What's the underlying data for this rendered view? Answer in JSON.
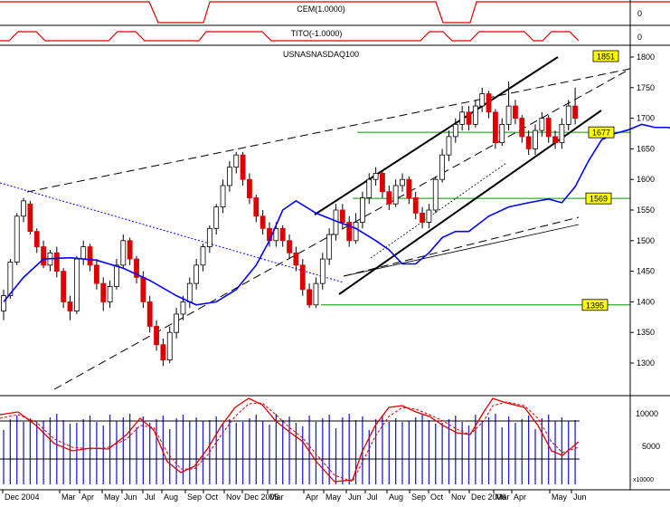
{
  "panels": {
    "cem": {
      "label": "CEM(1.0000)",
      "axis_ticks": [
        "0"
      ]
    },
    "tito": {
      "label": "TITO(-1.0000)",
      "axis_ticks": [
        "0"
      ]
    },
    "main": {
      "label": "USNASNASDAQ100"
    },
    "volume": {
      "multiplier": "x10000"
    }
  },
  "colors": {
    "candle_up": "#ffffff",
    "candle_down": "#dd0000",
    "moving_average": "#0000ff",
    "channel": "#000000",
    "support_resistance": "#009900",
    "indicator_line": "#dd0000",
    "volume_bar": "#2222cc",
    "price_tag_bg": "#ffff00"
  },
  "chart_data": {
    "type": "candlestick",
    "title": "USNASNASDAQ100",
    "x_tick_labels": [
      "Dec 2004",
      "Mar",
      "Apr",
      "May",
      "Jun",
      "Jul",
      "Aug",
      "Sep",
      "Oct",
      "Nov",
      "Dec 2005",
      "Mar",
      "Apr",
      "May",
      "Jun",
      "Jul",
      "Aug",
      "Sep",
      "Oct",
      "Nov",
      "Dec 2006",
      "Mar",
      "Apr",
      "May",
      "Jun"
    ],
    "y_axis": {
      "range": [
        1250,
        1800
      ],
      "ticks": [
        "1800",
        "1750",
        "1700",
        "1650",
        "1600",
        "1550",
        "1500",
        "1450",
        "1400",
        "1350",
        "1300"
      ]
    },
    "price_tags": [
      {
        "value": 1851,
        "label": "1851"
      },
      {
        "value": 1677,
        "label": "1677"
      },
      {
        "value": 1569,
        "label": "1569"
      },
      {
        "value": 1395,
        "label": "1395"
      }
    ],
    "horizontal_levels": [
      1677,
      1569,
      1395
    ],
    "moving_average_approx": [
      [
        0,
        1400
      ],
      [
        3,
        1440
      ],
      [
        6,
        1470
      ],
      [
        10,
        1472
      ],
      [
        14,
        1468
      ],
      [
        18,
        1455
      ],
      [
        22,
        1435
      ],
      [
        26,
        1410
      ],
      [
        29,
        1395
      ],
      [
        32,
        1400
      ],
      [
        35,
        1420
      ],
      [
        38,
        1460
      ],
      [
        40,
        1500
      ],
      [
        42,
        1550
      ],
      [
        44,
        1565
      ],
      [
        47,
        1545
      ],
      [
        50,
        1532
      ],
      [
        53,
        1520
      ],
      [
        56,
        1500
      ],
      [
        58,
        1485
      ],
      [
        60,
        1462
      ],
      [
        62,
        1462
      ],
      [
        64,
        1480
      ],
      [
        66,
        1505
      ],
      [
        68,
        1515
      ],
      [
        70,
        1515
      ],
      [
        73,
        1540
      ],
      [
        76,
        1555
      ],
      [
        79,
        1562
      ],
      [
        82,
        1568
      ],
      [
        84,
        1562
      ],
      [
        86,
        1588
      ],
      [
        88,
        1630
      ],
      [
        90,
        1665
      ],
      [
        92,
        1675
      ],
      [
        94,
        1681
      ],
      [
        96,
        1690
      ],
      [
        98,
        1685
      ],
      [
        100,
        1685
      ],
      [
        102,
        1678
      ],
      [
        104,
        1688
      ],
      [
        106,
        1692
      ]
    ],
    "candles_approx": [
      [
        0,
        1385,
        1410,
        1370,
        1420
      ],
      [
        1,
        1410,
        1465,
        1405,
        1470
      ],
      [
        2,
        1465,
        1540,
        1460,
        1545
      ],
      [
        3,
        1540,
        1565,
        1530,
        1570
      ],
      [
        4,
        1560,
        1515,
        1510,
        1565
      ],
      [
        5,
        1515,
        1490,
        1480,
        1520
      ],
      [
        6,
        1490,
        1460,
        1455,
        1500
      ],
      [
        7,
        1460,
        1480,
        1450,
        1485
      ],
      [
        8,
        1480,
        1450,
        1440,
        1490
      ],
      [
        9,
        1450,
        1400,
        1390,
        1455
      ],
      [
        10,
        1400,
        1385,
        1370,
        1410
      ],
      [
        11,
        1385,
        1470,
        1380,
        1475
      ],
      [
        12,
        1470,
        1490,
        1460,
        1500
      ],
      [
        13,
        1490,
        1460,
        1450,
        1495
      ],
      [
        14,
        1460,
        1430,
        1420,
        1470
      ],
      [
        15,
        1430,
        1400,
        1385,
        1440
      ],
      [
        16,
        1400,
        1425,
        1390,
        1435
      ],
      [
        17,
        1425,
        1460,
        1420,
        1470
      ],
      [
        18,
        1460,
        1500,
        1455,
        1510
      ],
      [
        19,
        1500,
        1470,
        1460,
        1505
      ],
      [
        20,
        1470,
        1440,
        1430,
        1475
      ],
      [
        21,
        1440,
        1400,
        1390,
        1450
      ],
      [
        22,
        1400,
        1360,
        1350,
        1410
      ],
      [
        23,
        1360,
        1330,
        1320,
        1370
      ],
      [
        24,
        1330,
        1305,
        1295,
        1340
      ],
      [
        25,
        1305,
        1350,
        1300,
        1360
      ],
      [
        26,
        1350,
        1380,
        1340,
        1390
      ],
      [
        27,
        1380,
        1400,
        1370,
        1410
      ],
      [
        28,
        1400,
        1430,
        1390,
        1440
      ],
      [
        29,
        1430,
        1460,
        1420,
        1470
      ],
      [
        30,
        1460,
        1490,
        1450,
        1495
      ],
      [
        31,
        1490,
        1520,
        1480,
        1525
      ],
      [
        32,
        1520,
        1555,
        1510,
        1560
      ],
      [
        33,
        1555,
        1590,
        1545,
        1600
      ],
      [
        34,
        1590,
        1620,
        1580,
        1630
      ],
      [
        35,
        1620,
        1640,
        1610,
        1645
      ],
      [
        36,
        1640,
        1600,
        1590,
        1645
      ],
      [
        37,
        1600,
        1570,
        1560,
        1610
      ],
      [
        38,
        1570,
        1540,
        1530,
        1575
      ],
      [
        39,
        1540,
        1520,
        1510,
        1550
      ],
      [
        40,
        1520,
        1500,
        1490,
        1530
      ],
      [
        41,
        1500,
        1520,
        1490,
        1530
      ],
      [
        42,
        1520,
        1500,
        1490,
        1525
      ],
      [
        43,
        1500,
        1480,
        1470,
        1510
      ],
      [
        44,
        1480,
        1460,
        1450,
        1490
      ],
      [
        45,
        1460,
        1420,
        1410,
        1470
      ],
      [
        46,
        1420,
        1395,
        1390,
        1430
      ],
      [
        47,
        1395,
        1430,
        1390,
        1440
      ],
      [
        48,
        1430,
        1470,
        1420,
        1480
      ],
      [
        49,
        1470,
        1510,
        1460,
        1520
      ],
      [
        50,
        1510,
        1550,
        1500,
        1560
      ],
      [
        51,
        1550,
        1530,
        1520,
        1560
      ],
      [
        52,
        1530,
        1500,
        1490,
        1540
      ],
      [
        53,
        1500,
        1530,
        1495,
        1545
      ],
      [
        54,
        1530,
        1570,
        1520,
        1580
      ],
      [
        55,
        1570,
        1600,
        1560,
        1610
      ],
      [
        56,
        1600,
        1610,
        1590,
        1620
      ],
      [
        57,
        1610,
        1580,
        1570,
        1615
      ],
      [
        58,
        1580,
        1560,
        1550,
        1590
      ],
      [
        59,
        1560,
        1590,
        1555,
        1600
      ],
      [
        60,
        1590,
        1600,
        1580,
        1610
      ],
      [
        61,
        1600,
        1570,
        1560,
        1605
      ],
      [
        62,
        1570,
        1545,
        1535,
        1580
      ],
      [
        63,
        1545,
        1530,
        1520,
        1555
      ],
      [
        64,
        1530,
        1550,
        1520,
        1560
      ],
      [
        65,
        1550,
        1600,
        1545,
        1605
      ],
      [
        66,
        1600,
        1640,
        1595,
        1650
      ],
      [
        67,
        1640,
        1670,
        1630,
        1680
      ],
      [
        68,
        1670,
        1690,
        1660,
        1700
      ],
      [
        69,
        1690,
        1710,
        1680,
        1720
      ],
      [
        70,
        1710,
        1690,
        1680,
        1720
      ],
      [
        71,
        1690,
        1720,
        1685,
        1730
      ],
      [
        72,
        1720,
        1740,
        1710,
        1750
      ],
      [
        73,
        1740,
        1710,
        1700,
        1745
      ],
      [
        74,
        1710,
        1660,
        1650,
        1715
      ],
      [
        75,
        1660,
        1690,
        1655,
        1700
      ],
      [
        76,
        1690,
        1720,
        1680,
        1760
      ],
      [
        77,
        1720,
        1700,
        1690,
        1730
      ],
      [
        78,
        1700,
        1670,
        1660,
        1705
      ],
      [
        79,
        1670,
        1650,
        1640,
        1680
      ],
      [
        80,
        1650,
        1680,
        1640,
        1690
      ],
      [
        81,
        1680,
        1700,
        1670,
        1710
      ],
      [
        82,
        1700,
        1670,
        1660,
        1705
      ],
      [
        83,
        1670,
        1660,
        1650,
        1680
      ],
      [
        84,
        1660,
        1690,
        1650,
        1700
      ],
      [
        85,
        1690,
        1720,
        1680,
        1730
      ],
      [
        86,
        1720,
        1700,
        1690,
        1750
      ]
    ],
    "volume_axis": {
      "ticks": [
        "10000",
        "5000"
      ]
    }
  }
}
